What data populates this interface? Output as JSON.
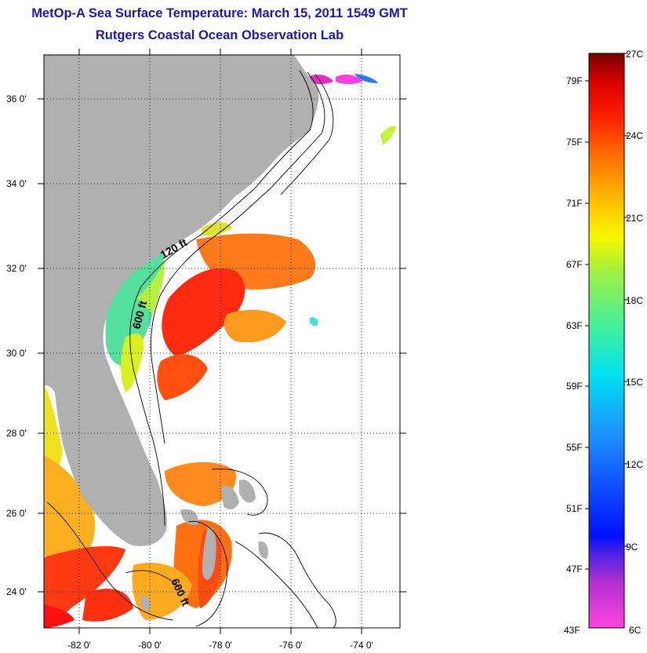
{
  "title": "MetOp-A Sea Surface Temperature:  March 15, 2011 1549 GMT",
  "subtitle": "Rutgers Coastal Ocean Observation Lab",
  "map": {
    "lat_labels": [
      "36 0'",
      "34 0'",
      "32 0'",
      "30 0'",
      "28 0'",
      "26 0'",
      "24 0'"
    ],
    "lon_labels": [
      "-82 0'",
      "-80 0'",
      "-78 0'",
      "-76 0'",
      "-74 0'"
    ],
    "lon_range": [
      -83,
      -72.5
    ],
    "lat_range": [
      23,
      37.2
    ],
    "contour_labels": [
      "120 ft",
      "600 ft",
      "600 ft"
    ],
    "colors": {
      "land": "#b0b0b0",
      "ocean": "#ffffff"
    }
  },
  "colorbar": {
    "fahrenheit_labels": [
      "79F",
      "75F",
      "71F",
      "67F",
      "63F",
      "59F",
      "55F",
      "51F",
      "47F",
      "43F"
    ],
    "celsius_labels": [
      "27C",
      "24C",
      "21C",
      "18C",
      "15C",
      "12C",
      "9C",
      "6C"
    ],
    "range_c": [
      6,
      27
    ]
  }
}
